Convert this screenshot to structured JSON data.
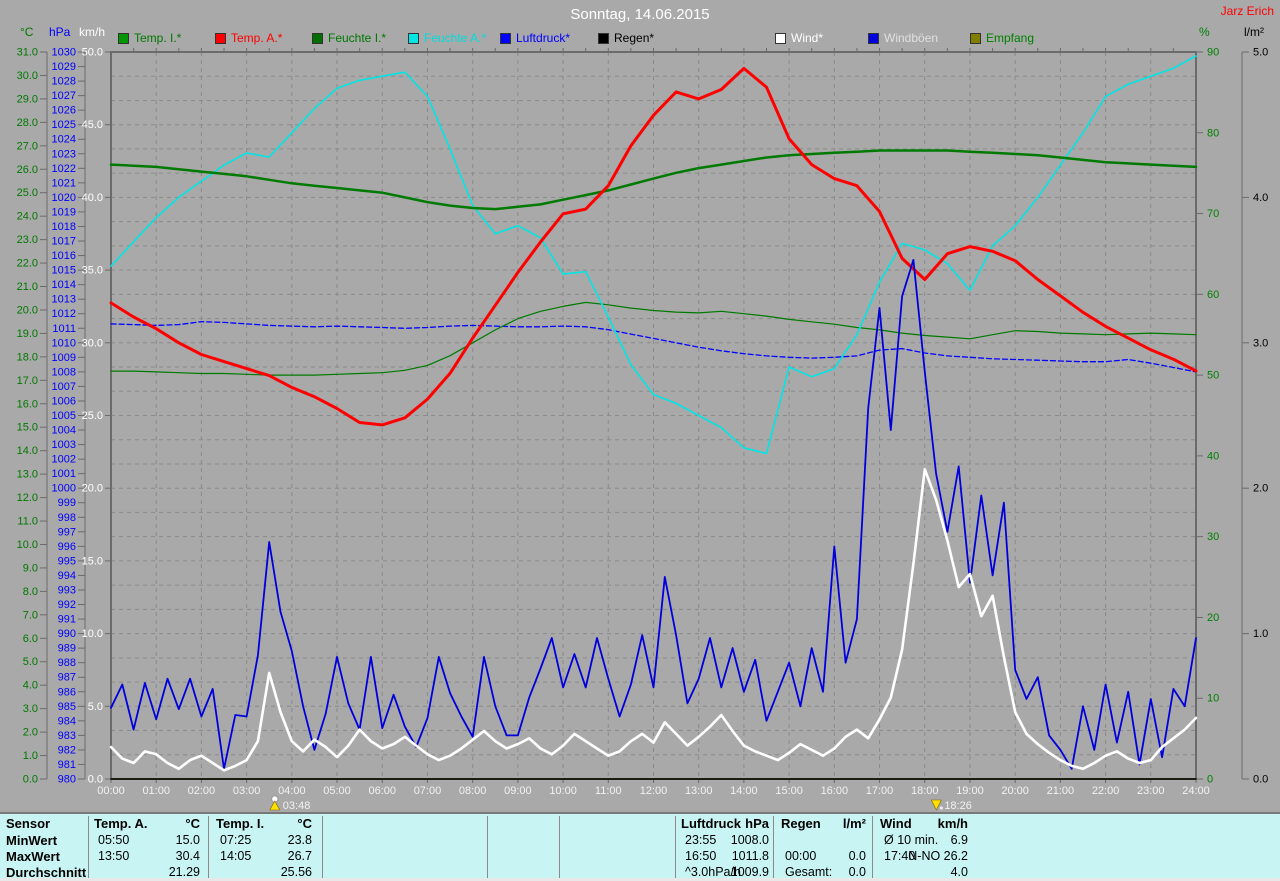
{
  "window": {
    "title": "Sonntag, 14.06.2015",
    "station": "Jarz Erich"
  },
  "legend": {
    "items": [
      {
        "label": "Temp. I.*",
        "swatch": "#009600",
        "text_color": "#007800"
      },
      {
        "label": "Temp. A.*",
        "swatch": "#ff0000",
        "text_color": "#ff0000"
      },
      {
        "label": "Feuchte I.*",
        "swatch": "#006e00",
        "text_color": "#007800"
      },
      {
        "label": "Feuchte A.*",
        "swatch": "#00e6e6",
        "text_color": "#00dcdc"
      },
      {
        "label": "Luftdruck*",
        "swatch": "#0000ff",
        "text_color": "#0000ff"
      },
      {
        "label": "Regen*",
        "swatch": "#000000",
        "text_color": "#000000"
      },
      {
        "label": "Wind*",
        "swatch": "#ffffff",
        "text_color": "#ffffff"
      },
      {
        "label": "Windböen",
        "swatch": "#0000dd",
        "text_color": "#e0e0e0"
      },
      {
        "label": "Empfang",
        "swatch": "#808000",
        "text_color": "#008000"
      }
    ]
  },
  "axes": {
    "left": [
      {
        "name": "temp_c",
        "header": "°C",
        "color": "#007800",
        "min": 0,
        "max": 31,
        "step": 1,
        "decimals": 1
      },
      {
        "name": "pressure_hpa",
        "header": "hPa",
        "color": "#0000ff",
        "min": 980,
        "max": 1030,
        "step": 1,
        "decimals": 0
      },
      {
        "name": "wind_kmh",
        "header": "km/h",
        "color": "#ffffff",
        "min": 0,
        "max": 50,
        "step": 5,
        "decimals": 1
      }
    ],
    "right": [
      {
        "name": "humidity_pct",
        "header": "%",
        "color": "#008000",
        "min": 0,
        "max": 90,
        "step": 10,
        "decimals": 0
      },
      {
        "name": "rain_lm2",
        "header": "l/m²",
        "color": "#000000",
        "min": 0,
        "max": 5,
        "step": 1,
        "decimals": 1
      }
    ],
    "x": {
      "labels": [
        "00:00",
        "01:00",
        "02:00",
        "03:00",
        "04:00",
        "05:00",
        "06:00",
        "07:00",
        "08:00",
        "09:00",
        "10:00",
        "11:00",
        "12:00",
        "13:00",
        "14:00",
        "15:00",
        "16:00",
        "17:00",
        "18:00",
        "19:00",
        "20:00",
        "21:00",
        "22:00",
        "23:00",
        "24:00"
      ],
      "label_color": "#f2f2f2"
    }
  },
  "chart_data": {
    "type": "line",
    "title": "Sonntag, 14.06.2015",
    "x_range_hours": [
      0,
      24
    ],
    "grid": "dashed gray, hourly vertical, 30 horizontal intervals",
    "sun_markers": [
      {
        "time": "03:48",
        "hour": 3.8,
        "kind": "sunrise"
      },
      {
        "time": "18:26",
        "hour": 18.433,
        "kind": "sunset"
      }
    ],
    "series": [
      {
        "name": "Temp. I.",
        "axis": "temp_c",
        "color": "#007a00",
        "width": 2.5,
        "x_step_h": 0.5,
        "values": [
          26.2,
          26.15,
          26.1,
          26.0,
          25.9,
          25.8,
          25.7,
          25.55,
          25.4,
          25.3,
          25.2,
          25.1,
          25.0,
          24.8,
          24.6,
          24.45,
          24.35,
          24.3,
          24.4,
          24.5,
          24.7,
          24.9,
          25.1,
          25.35,
          25.6,
          25.85,
          26.05,
          26.2,
          26.35,
          26.5,
          26.6,
          26.65,
          26.7,
          26.75,
          26.8,
          26.8,
          26.8,
          26.8,
          26.75,
          26.7,
          26.65,
          26.6,
          26.5,
          26.4,
          26.3,
          26.25,
          26.2,
          26.15,
          26.1
        ]
      },
      {
        "name": "Temp. A.",
        "axis": "temp_c",
        "color": "#ff0000",
        "width": 3,
        "x_step_h": 0.5,
        "values": [
          20.3,
          19.7,
          19.2,
          18.6,
          18.1,
          17.8,
          17.5,
          17.2,
          16.7,
          16.3,
          15.8,
          15.2,
          15.1,
          15.4,
          16.2,
          17.3,
          18.8,
          20.2,
          21.6,
          22.9,
          24.1,
          24.3,
          25.3,
          27.0,
          28.3,
          29.3,
          29.0,
          29.4,
          30.3,
          29.5,
          27.3,
          26.2,
          25.6,
          25.3,
          24.2,
          22.2,
          21.3,
          22.4,
          22.7,
          22.5,
          22.1,
          21.3,
          20.6,
          19.9,
          19.3,
          18.8,
          18.3,
          17.9,
          17.4
        ]
      },
      {
        "name": "Feuchte I.",
        "axis": "humidity_pct",
        "color": "#007a00",
        "width": 1.2,
        "x_step_h": 0.5,
        "values": [
          50.5,
          50.5,
          50.4,
          50.3,
          50.2,
          50.2,
          50.1,
          50.0,
          50.0,
          50.0,
          50.1,
          50.2,
          50.3,
          50.6,
          51.2,
          52.4,
          54.0,
          55.6,
          57.0,
          57.9,
          58.5,
          59.0,
          58.7,
          58.3,
          58.0,
          57.8,
          57.7,
          57.9,
          57.6,
          57.3,
          56.9,
          56.6,
          56.3,
          55.9,
          55.6,
          55.2,
          54.9,
          54.7,
          54.5,
          55.0,
          55.5,
          55.4,
          55.2,
          55.1,
          55.0,
          55.1,
          55.2,
          55.1,
          55.0
        ]
      },
      {
        "name": "Feuchte A.",
        "axis": "humidity_pct",
        "color": "#00e6e6",
        "width": 1.6,
        "x_step_h": 0.5,
        "values": [
          63.5,
          66.5,
          69.5,
          72.0,
          74.0,
          76.0,
          77.5,
          77.0,
          80.0,
          83.0,
          85.5,
          86.5,
          87.0,
          87.5,
          84.5,
          78.0,
          71.0,
          67.5,
          68.5,
          67.0,
          62.5,
          62.8,
          57.2,
          51.3,
          47.6,
          46.5,
          45.0,
          43.5,
          41.0,
          40.3,
          51.0,
          49.8,
          50.8,
          55.0,
          61.5,
          66.3,
          65.5,
          63.8,
          60.5,
          66.0,
          68.5,
          72.0,
          76.0,
          80.0,
          84.5,
          86.0,
          87.0,
          88.0,
          89.5
        ]
      },
      {
        "name": "Luftdruck",
        "axis": "pressure_hpa",
        "color": "#0000ff",
        "width": 1.3,
        "dash": "5 3",
        "x_step_h": 0.5,
        "values": [
          1011.3,
          1011.25,
          1011.2,
          1011.25,
          1011.45,
          1011.4,
          1011.3,
          1011.2,
          1011.15,
          1011.1,
          1011.15,
          1011.1,
          1011.05,
          1011.0,
          1011.05,
          1011.15,
          1011.2,
          1011.15,
          1011.1,
          1011.1,
          1011.15,
          1011.1,
          1010.9,
          1010.6,
          1010.3,
          1010.0,
          1009.7,
          1009.45,
          1009.25,
          1009.1,
          1009.0,
          1008.95,
          1009.0,
          1009.1,
          1009.5,
          1009.6,
          1009.3,
          1009.1,
          1009.0,
          1008.9,
          1008.85,
          1008.8,
          1008.75,
          1008.7,
          1008.7,
          1008.85,
          1008.6,
          1008.3,
          1008.0
        ]
      },
      {
        "name": "Regen",
        "axis": "rain_lm2",
        "color": "#000000",
        "width": 1.5,
        "x_step_h": 24,
        "values": [
          0,
          0
        ]
      },
      {
        "name": "Empfang",
        "axis": "rain_lm2",
        "color": "#808000",
        "width": 1.2,
        "x_step_h": 24,
        "values": [
          0,
          0
        ]
      },
      {
        "name": "Windböen",
        "axis": "wind_kmh",
        "color": "#0000dd",
        "width": 1.8,
        "x_step_h": 0.25,
        "values": [
          4.9,
          6.5,
          3.4,
          6.6,
          4.1,
          6.9,
          4.8,
          6.9,
          4.3,
          6.2,
          0.7,
          4.4,
          4.3,
          8.5,
          16.3,
          11.5,
          8.8,
          5.0,
          2.0,
          4.5,
          8.4,
          5.2,
          3.4,
          8.4,
          3.5,
          5.8,
          3.6,
          2.2,
          4.2,
          8.4,
          5.9,
          4.3,
          2.9,
          8.4,
          5.0,
          3.0,
          3.0,
          5.6,
          7.6,
          9.7,
          6.3,
          8.6,
          6.3,
          9.7,
          6.9,
          4.3,
          6.5,
          9.9,
          6.3,
          13.9,
          9.9,
          5.2,
          6.9,
          9.7,
          6.3,
          9.0,
          6.0,
          8.2,
          4.0,
          6.0,
          8.0,
          5.0,
          9.0,
          6.0,
          16.0,
          8.0,
          11.0,
          25.5,
          32.4,
          24.0,
          33.2,
          35.7,
          28.0,
          21.0,
          17.0,
          21.5,
          13.5,
          19.5,
          14.0,
          19.0,
          7.5,
          5.5,
          7.0,
          3.0,
          2.0,
          0.7,
          5.0,
          2.0,
          6.5,
          2.5,
          6.0,
          1.0,
          5.5,
          1.5,
          6.2,
          5.0,
          9.7
        ]
      },
      {
        "name": "Wind",
        "axis": "wind_kmh",
        "color": "#ffffff",
        "width": 2.6,
        "x_step_h": 0.25,
        "values": [
          2.2,
          1.4,
          1.1,
          1.9,
          1.7,
          1.1,
          0.7,
          1.3,
          1.6,
          1.1,
          0.6,
          0.9,
          1.3,
          2.6,
          7.3,
          4.6,
          2.6,
          1.9,
          2.7,
          2.2,
          1.5,
          2.3,
          3.4,
          2.6,
          2.1,
          2.4,
          2.9,
          2.3,
          1.7,
          1.3,
          1.6,
          2.1,
          2.7,
          3.3,
          2.6,
          2.1,
          2.4,
          2.8,
          2.1,
          1.7,
          2.3,
          3.1,
          2.6,
          2.1,
          1.6,
          1.9,
          2.6,
          3.1,
          2.5,
          3.9,
          3.1,
          2.3,
          2.9,
          3.6,
          4.4,
          3.3,
          2.3,
          1.9,
          1.6,
          1.3,
          1.8,
          2.4,
          2.0,
          1.6,
          2.1,
          2.9,
          3.4,
          2.8,
          4.1,
          5.6,
          8.9,
          14.8,
          21.3,
          19.2,
          16.4,
          13.2,
          14.1,
          11.2,
          12.6,
          8.4,
          4.6,
          3.1,
          2.4,
          1.8,
          1.3,
          0.9,
          0.7,
          1.1,
          1.6,
          1.9,
          1.4,
          1.1,
          1.3,
          2.2,
          2.8,
          3.4,
          4.2
        ]
      }
    ]
  },
  "summary_table": {
    "background": "#c9f4f4",
    "row_headers": [
      "Sensor",
      "MinWert",
      "MaxWert",
      "Durchschnitt"
    ],
    "columns": [
      {
        "title": "Temp. A.",
        "unit": "°C",
        "rows": [
          [
            "05:50",
            "15.0"
          ],
          [
            "13:50",
            "30.4"
          ],
          [
            "",
            "21.29"
          ]
        ]
      },
      {
        "title": "Temp. I.",
        "unit": "°C",
        "rows": [
          [
            "07:25",
            "23.8"
          ],
          [
            "14:05",
            "26.7"
          ],
          [
            "",
            "25.56"
          ]
        ]
      },
      {
        "title": "",
        "unit": "",
        "rows": [
          [
            "",
            ""
          ],
          [
            "",
            ""
          ],
          [
            "",
            ""
          ]
        ]
      },
      {
        "title": "",
        "unit": "",
        "rows": [
          [
            "",
            ""
          ],
          [
            "",
            ""
          ],
          [
            "",
            ""
          ]
        ]
      },
      {
        "title": "",
        "unit": "",
        "rows": [
          [
            "",
            ""
          ],
          [
            "",
            ""
          ],
          [
            "",
            ""
          ]
        ]
      },
      {
        "title": "Luftdruck",
        "unit": "hPa",
        "rows": [
          [
            "23:55",
            "1008.0"
          ],
          [
            "16:50",
            "1011.8"
          ],
          [
            "^3.0hPa/h",
            "1009.9"
          ]
        ]
      },
      {
        "title": "Regen",
        "unit": "l/m²",
        "rows": [
          [
            "",
            ""
          ],
          [
            "00:00",
            "0.0"
          ],
          [
            "Gesamt:",
            "0.0"
          ]
        ]
      },
      {
        "title": "Wind",
        "unit": "km/h",
        "rows": [
          [
            "Ø 10 min.",
            "6.9"
          ],
          [
            "17:40",
            "N-NO 26.2"
          ],
          [
            "",
            "4.0"
          ]
        ]
      }
    ]
  }
}
